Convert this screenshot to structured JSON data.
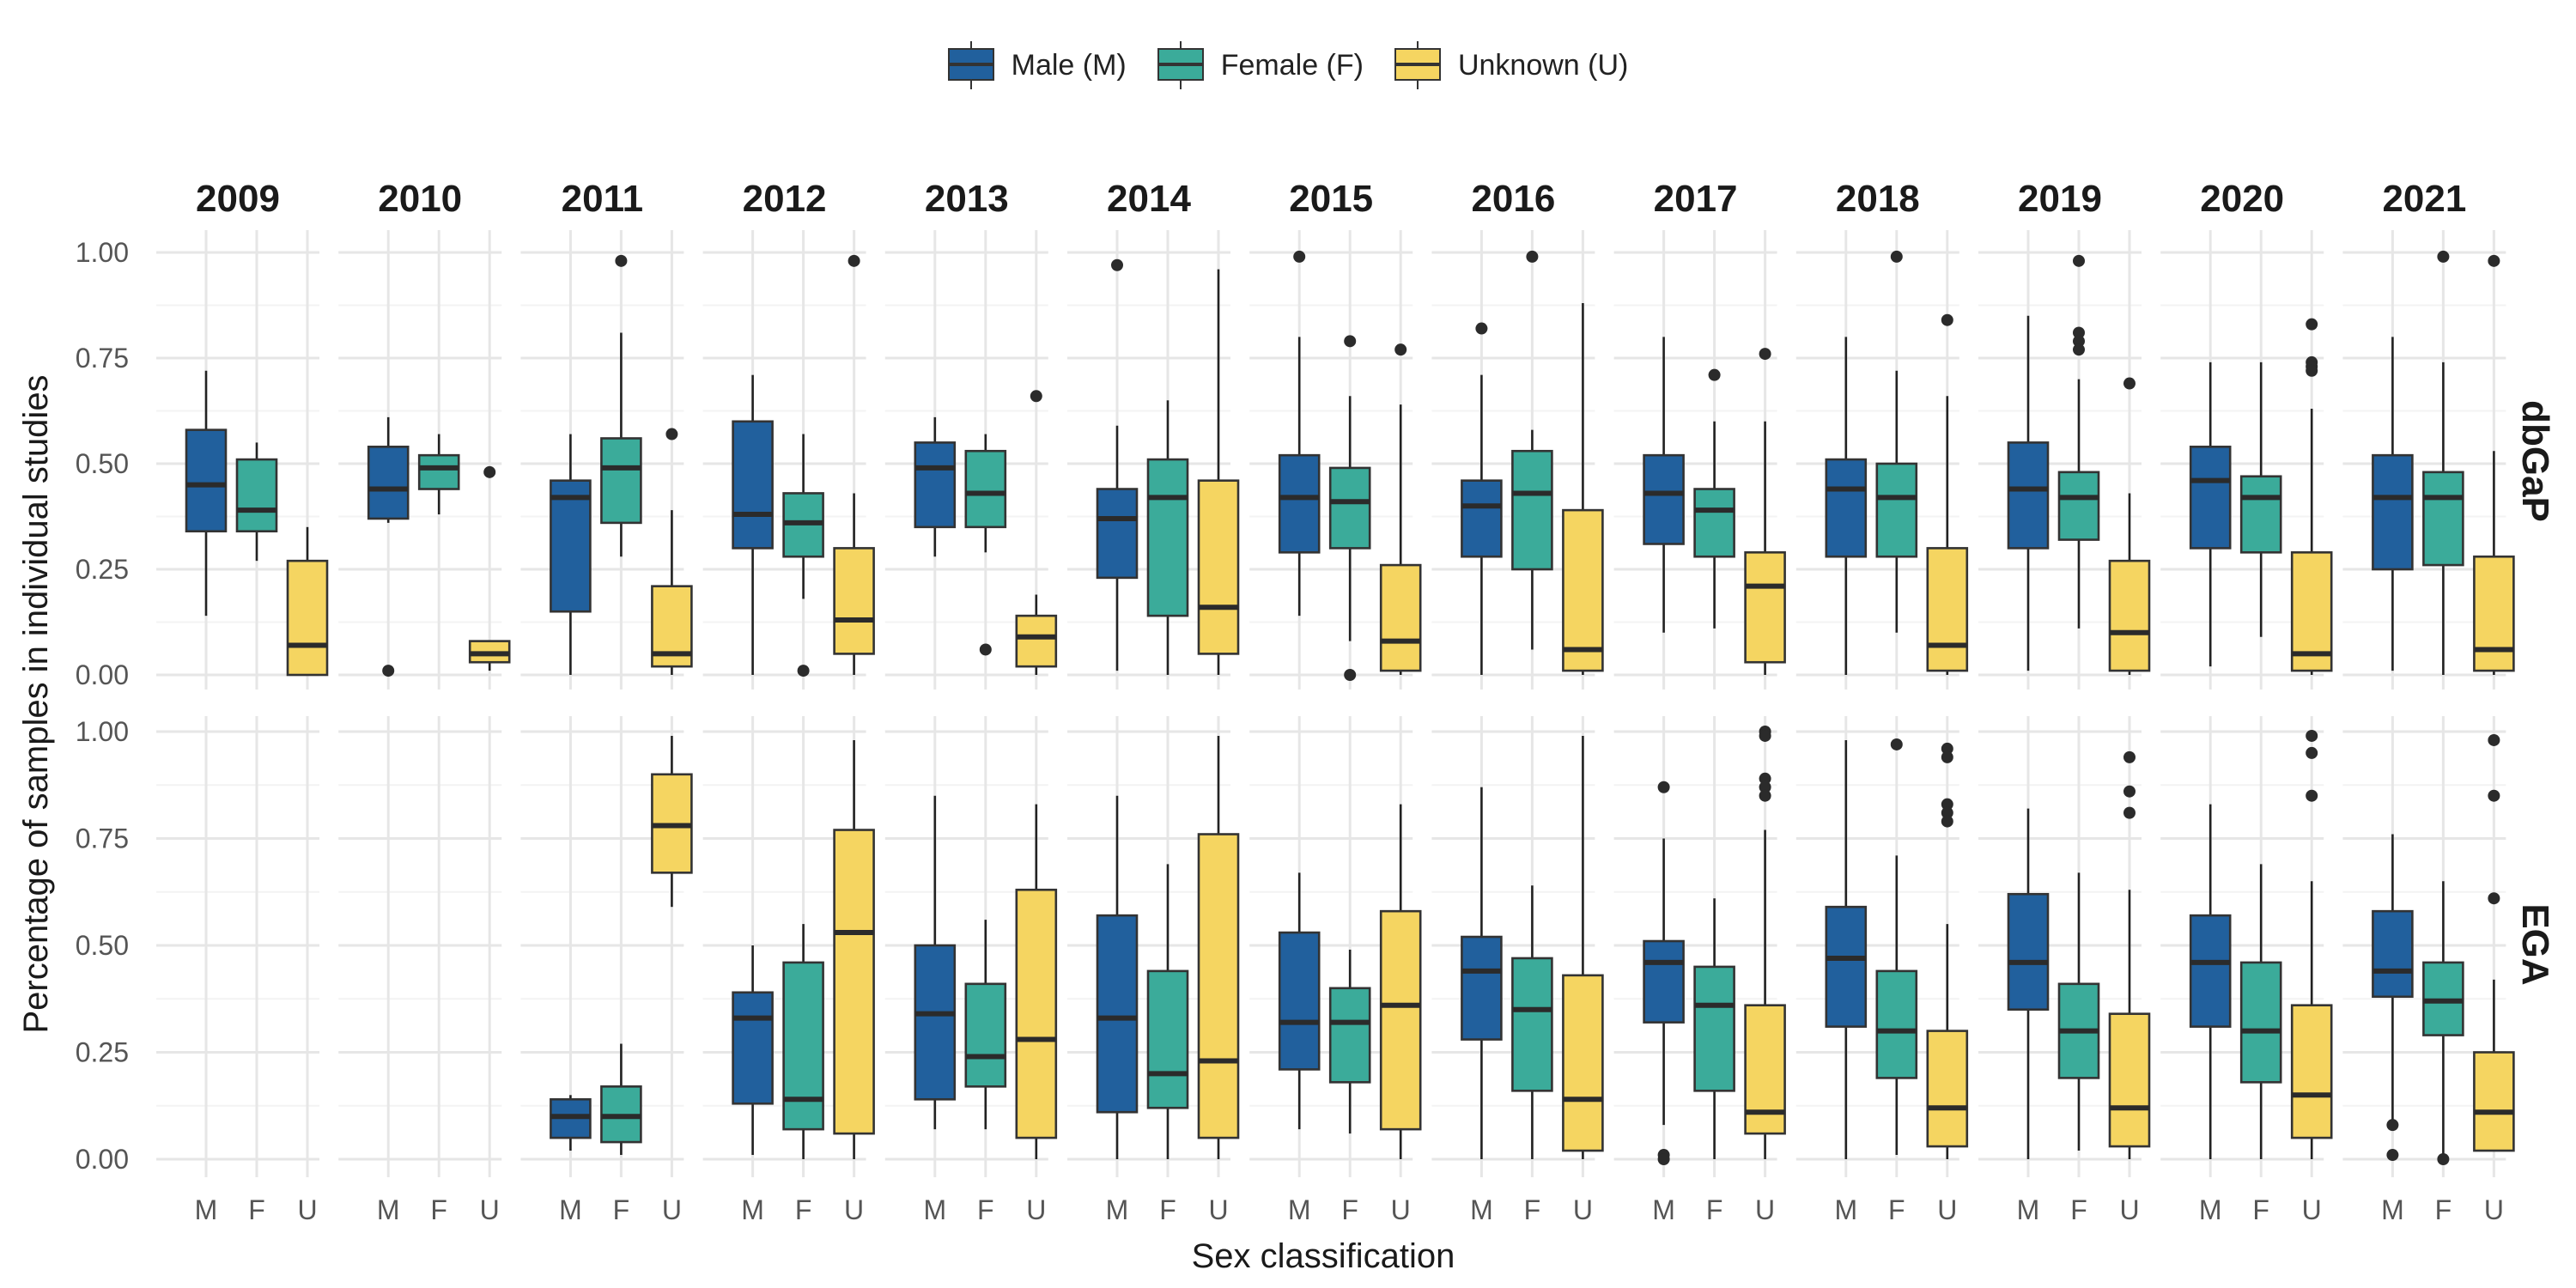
{
  "legend": {
    "items": [
      {
        "key": "M",
        "label": "Male (M)",
        "color": "#21609D"
      },
      {
        "key": "F",
        "label": "Female (F)",
        "color": "#3BAB9A"
      },
      {
        "key": "U",
        "label": "Unknown (U)",
        "color": "#F5D561"
      }
    ]
  },
  "chart_data": {
    "type": "boxplot",
    "facet_columns": [
      "2009",
      "2010",
      "2011",
      "2012",
      "2013",
      "2014",
      "2015",
      "2016",
      "2017",
      "2018",
      "2019",
      "2020",
      "2021"
    ],
    "facet_rows": [
      "dbGaP",
      "EGA"
    ],
    "categories": [
      "M",
      "F",
      "U"
    ],
    "xlabel": "Sex classification",
    "ylabel": "Percentage of samples in individual studies",
    "ylim": [
      0,
      1
    ],
    "yticks": [
      "0.00",
      "0.25",
      "0.50",
      "0.75",
      "1.00"
    ],
    "grid": true,
    "legend_position": "top",
    "colors": {
      "M": "#21609D",
      "F": "#3BAB9A",
      "U": "#F5D561"
    },
    "boxes": {
      "dbGaP": {
        "2009": {
          "M": [
            0.14,
            0.34,
            0.45,
            0.58,
            0.72,
            []
          ],
          "F": [
            0.27,
            0.34,
            0.39,
            0.51,
            0.55,
            []
          ],
          "U": [
            0.0,
            0.0,
            0.07,
            0.27,
            0.35,
            []
          ]
        },
        "2010": {
          "M": [
            0.36,
            0.37,
            0.44,
            0.54,
            0.61,
            [
              0.01
            ]
          ],
          "F": [
            0.38,
            0.44,
            0.49,
            0.52,
            0.57,
            []
          ],
          "U": [
            0.01,
            0.03,
            0.05,
            0.08,
            0.08,
            [
              0.48
            ]
          ]
        },
        "2011": {
          "M": [
            0.0,
            0.15,
            0.42,
            0.46,
            0.57,
            []
          ],
          "F": [
            0.28,
            0.36,
            0.49,
            0.56,
            0.81,
            [
              0.98
            ]
          ],
          "U": [
            0.0,
            0.02,
            0.05,
            0.21,
            0.39,
            [
              0.57
            ]
          ]
        },
        "2012": {
          "M": [
            0.0,
            0.3,
            0.38,
            0.6,
            0.71,
            []
          ],
          "F": [
            0.18,
            0.28,
            0.36,
            0.43,
            0.57,
            [
              0.01
            ]
          ],
          "U": [
            0.0,
            0.05,
            0.13,
            0.3,
            0.43,
            [
              0.98
            ]
          ]
        },
        "2013": {
          "M": [
            0.28,
            0.35,
            0.49,
            0.55,
            0.61,
            []
          ],
          "F": [
            0.29,
            0.35,
            0.43,
            0.53,
            0.57,
            [
              0.06
            ]
          ],
          "U": [
            0.0,
            0.02,
            0.09,
            0.14,
            0.19,
            [
              0.66
            ]
          ]
        },
        "2014": {
          "M": [
            0.01,
            0.23,
            0.37,
            0.44,
            0.59,
            [
              0.97
            ]
          ],
          "F": [
            0.0,
            0.14,
            0.42,
            0.51,
            0.65,
            []
          ],
          "U": [
            0.0,
            0.05,
            0.16,
            0.46,
            0.96,
            []
          ]
        },
        "2015": {
          "M": [
            0.14,
            0.29,
            0.42,
            0.52,
            0.8,
            [
              0.99
            ]
          ],
          "F": [
            0.08,
            0.3,
            0.41,
            0.49,
            0.66,
            [
              0.79,
              0.0
            ]
          ],
          "U": [
            0.0,
            0.01,
            0.08,
            0.26,
            0.64,
            [
              0.77
            ]
          ]
        },
        "2016": {
          "M": [
            0.0,
            0.28,
            0.4,
            0.46,
            0.71,
            [
              0.82
            ]
          ],
          "F": [
            0.06,
            0.25,
            0.43,
            0.53,
            0.58,
            [
              0.99
            ]
          ],
          "U": [
            0.0,
            0.01,
            0.06,
            0.39,
            0.88,
            []
          ]
        },
        "2017": {
          "M": [
            0.1,
            0.31,
            0.43,
            0.52,
            0.8,
            []
          ],
          "F": [
            0.11,
            0.28,
            0.39,
            0.44,
            0.6,
            [
              0.71
            ]
          ],
          "U": [
            0.0,
            0.03,
            0.21,
            0.29,
            0.6,
            [
              0.76
            ]
          ]
        },
        "2018": {
          "M": [
            0.0,
            0.28,
            0.44,
            0.51,
            0.8,
            []
          ],
          "F": [
            0.1,
            0.28,
            0.42,
            0.5,
            0.72,
            [
              0.99
            ]
          ],
          "U": [
            0.0,
            0.01,
            0.07,
            0.3,
            0.66,
            [
              0.84
            ]
          ]
        },
        "2019": {
          "M": [
            0.01,
            0.3,
            0.44,
            0.55,
            0.85,
            []
          ],
          "F": [
            0.11,
            0.32,
            0.42,
            0.48,
            0.7,
            [
              0.98,
              0.81,
              0.79,
              0.77
            ]
          ],
          "U": [
            0.0,
            0.01,
            0.1,
            0.27,
            0.43,
            [
              0.69
            ]
          ]
        },
        "2020": {
          "M": [
            0.02,
            0.3,
            0.46,
            0.54,
            0.74,
            []
          ],
          "F": [
            0.09,
            0.29,
            0.42,
            0.47,
            0.74,
            []
          ],
          "U": [
            0.0,
            0.01,
            0.05,
            0.29,
            0.63,
            [
              0.83,
              0.74,
              0.73,
              0.72
            ]
          ]
        },
        "2021": {
          "M": [
            0.01,
            0.25,
            0.42,
            0.52,
            0.8,
            []
          ],
          "F": [
            0.0,
            0.26,
            0.42,
            0.48,
            0.74,
            [
              0.99
            ]
          ],
          "U": [
            0.0,
            0.01,
            0.06,
            0.28,
            0.53,
            [
              0.98
            ]
          ]
        }
      },
      "EGA": {
        "2011": {
          "M": [
            0.02,
            0.05,
            0.1,
            0.14,
            0.15,
            []
          ],
          "F": [
            0.01,
            0.04,
            0.1,
            0.17,
            0.27,
            []
          ],
          "U": [
            0.59,
            0.67,
            0.78,
            0.9,
            0.99,
            []
          ]
        },
        "2012": {
          "M": [
            0.01,
            0.13,
            0.33,
            0.39,
            0.5,
            []
          ],
          "F": [
            0.0,
            0.07,
            0.14,
            0.46,
            0.55,
            []
          ],
          "U": [
            0.0,
            0.06,
            0.53,
            0.77,
            0.98,
            []
          ]
        },
        "2013": {
          "M": [
            0.07,
            0.14,
            0.34,
            0.5,
            0.85,
            []
          ],
          "F": [
            0.07,
            0.17,
            0.24,
            0.41,
            0.56,
            []
          ],
          "U": [
            0.0,
            0.05,
            0.28,
            0.63,
            0.83,
            []
          ]
        },
        "2014": {
          "M": [
            0.0,
            0.11,
            0.33,
            0.57,
            0.85,
            []
          ],
          "F": [
            0.0,
            0.12,
            0.2,
            0.44,
            0.69,
            []
          ],
          "U": [
            0.0,
            0.05,
            0.23,
            0.76,
            0.99,
            []
          ]
        },
        "2015": {
          "M": [
            0.07,
            0.21,
            0.32,
            0.53,
            0.67,
            []
          ],
          "F": [
            0.06,
            0.18,
            0.32,
            0.4,
            0.49,
            []
          ],
          "U": [
            0.0,
            0.07,
            0.36,
            0.58,
            0.83,
            []
          ]
        },
        "2016": {
          "M": [
            0.0,
            0.28,
            0.44,
            0.52,
            0.87,
            []
          ],
          "F": [
            0.0,
            0.16,
            0.35,
            0.47,
            0.64,
            []
          ],
          "U": [
            0.0,
            0.02,
            0.14,
            0.43,
            0.99,
            []
          ]
        },
        "2017": {
          "M": [
            0.08,
            0.32,
            0.46,
            0.51,
            0.75,
            [
              0.87,
              0.01,
              0.0
            ]
          ],
          "F": [
            0.0,
            0.16,
            0.36,
            0.45,
            0.61,
            []
          ],
          "U": [
            0.0,
            0.06,
            0.11,
            0.36,
            0.77,
            [
              1.0,
              0.99,
              0.89,
              0.87,
              0.85
            ]
          ]
        },
        "2018": {
          "M": [
            0.0,
            0.31,
            0.47,
            0.59,
            0.98,
            []
          ],
          "F": [
            0.01,
            0.19,
            0.3,
            0.44,
            0.71,
            [
              0.97
            ]
          ],
          "U": [
            0.0,
            0.03,
            0.12,
            0.3,
            0.55,
            [
              0.96,
              0.94,
              0.83,
              0.81,
              0.79
            ]
          ]
        },
        "2019": {
          "M": [
            0.0,
            0.35,
            0.46,
            0.62,
            0.82,
            []
          ],
          "F": [
            0.02,
            0.19,
            0.3,
            0.41,
            0.67,
            []
          ],
          "U": [
            0.0,
            0.03,
            0.12,
            0.34,
            0.63,
            [
              0.94,
              0.86,
              0.81
            ]
          ]
        },
        "2020": {
          "M": [
            0.0,
            0.31,
            0.46,
            0.57,
            0.83,
            []
          ],
          "F": [
            0.0,
            0.18,
            0.3,
            0.46,
            0.69,
            []
          ],
          "U": [
            0.0,
            0.05,
            0.15,
            0.36,
            0.65,
            [
              0.99,
              0.95,
              0.85
            ]
          ]
        },
        "2021": {
          "M": [
            0.08,
            0.38,
            0.44,
            0.58,
            0.76,
            [
              0.08,
              0.01
            ]
          ],
          "F": [
            0.0,
            0.29,
            0.37,
            0.46,
            0.65,
            [
              0.0
            ]
          ],
          "U": [
            0.02,
            0.02,
            0.11,
            0.25,
            0.42,
            [
              0.98,
              0.85,
              0.61
            ]
          ]
        }
      }
    }
  }
}
